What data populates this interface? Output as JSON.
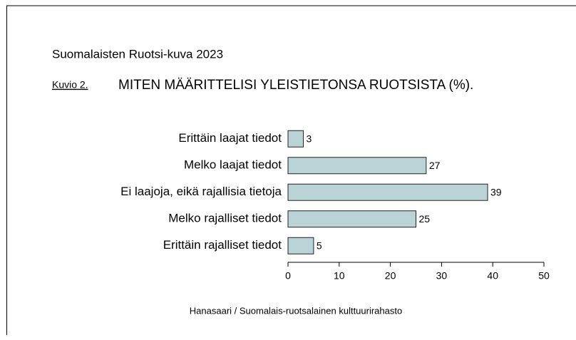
{
  "chart_data": {
    "type": "barh",
    "header": "Suomalaisten Ruotsi-kuva 2023",
    "figure_label": "Kuvio 2.",
    "title": "MITEN MÄÄRITTELISI YLEISTIETONSA RUOTSISTA (%).",
    "categories": [
      "Erittäin laajat tiedot",
      "Melko laajat tiedot",
      "Ei laajoja, eikä rajallisia tietoja",
      "Melko rajalliset tiedot",
      "Erittäin rajalliset tiedot"
    ],
    "values": [
      3,
      27,
      39,
      25,
      5
    ],
    "color": "#b9d3d7",
    "xlim": [
      0,
      50
    ],
    "xticks": [
      0,
      10,
      20,
      30,
      40,
      50
    ],
    "source": "Hanasaari / Suomalais-ruotsalainen kulttuurirahasto"
  }
}
